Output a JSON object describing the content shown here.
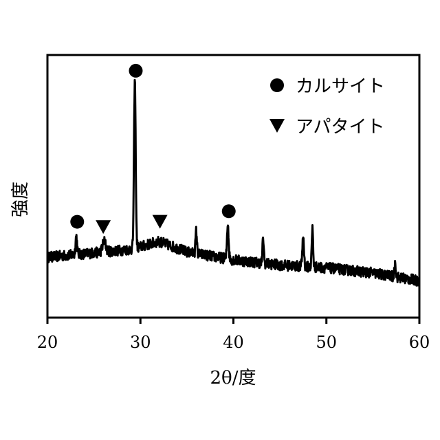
{
  "chart_data": {
    "type": "line",
    "title": "",
    "xlabel": "2θ/度",
    "ylabel": "強度",
    "xlim": [
      20,
      60
    ],
    "ylim": [
      0,
      100
    ],
    "y_units": "arbitrary",
    "xticks": [
      20,
      30,
      40,
      50,
      60
    ],
    "grid": false,
    "legend_placement": "top-right",
    "line_color": "#000000",
    "baseline": [
      [
        20,
        23
      ],
      [
        26,
        25
      ],
      [
        29,
        26
      ],
      [
        32,
        29
      ],
      [
        35,
        25
      ],
      [
        40,
        22
      ],
      [
        45,
        20
      ],
      [
        50,
        19
      ],
      [
        55,
        17
      ],
      [
        60,
        14
      ]
    ],
    "peaks": [
      {
        "x": 23.1,
        "height": 31,
        "width": 0.12
      },
      {
        "x": 26.1,
        "height": 29,
        "width": 0.25
      },
      {
        "x": 29.4,
        "height": 90,
        "width": 0.13
      },
      {
        "x": 36.0,
        "height": 33,
        "width": 0.1
      },
      {
        "x": 39.4,
        "height": 36,
        "width": 0.12
      },
      {
        "x": 43.2,
        "height": 30,
        "width": 0.1
      },
      {
        "x": 47.5,
        "height": 31,
        "width": 0.12
      },
      {
        "x": 48.5,
        "height": 34,
        "width": 0.1
      },
      {
        "x": 57.4,
        "height": 21,
        "width": 0.1
      }
    ],
    "markers": [
      {
        "phase": "calcite",
        "symbol": "circle",
        "x": 23.2,
        "y": 36.5
      },
      {
        "phase": "calcite",
        "symbol": "circle",
        "x": 29.5,
        "y": 94
      },
      {
        "phase": "calcite",
        "symbol": "circle",
        "x": 39.5,
        "y": 40.5
      },
      {
        "phase": "apatite",
        "symbol": "triangle-down",
        "x": 26.0,
        "y": 34.5
      },
      {
        "phase": "apatite",
        "symbol": "triangle-down",
        "x": 32.1,
        "y": 36.5
      }
    ],
    "legend": [
      {
        "symbol": "circle",
        "label": "カルサイト"
      },
      {
        "symbol": "triangle-down",
        "label": "アパタイト"
      }
    ]
  }
}
